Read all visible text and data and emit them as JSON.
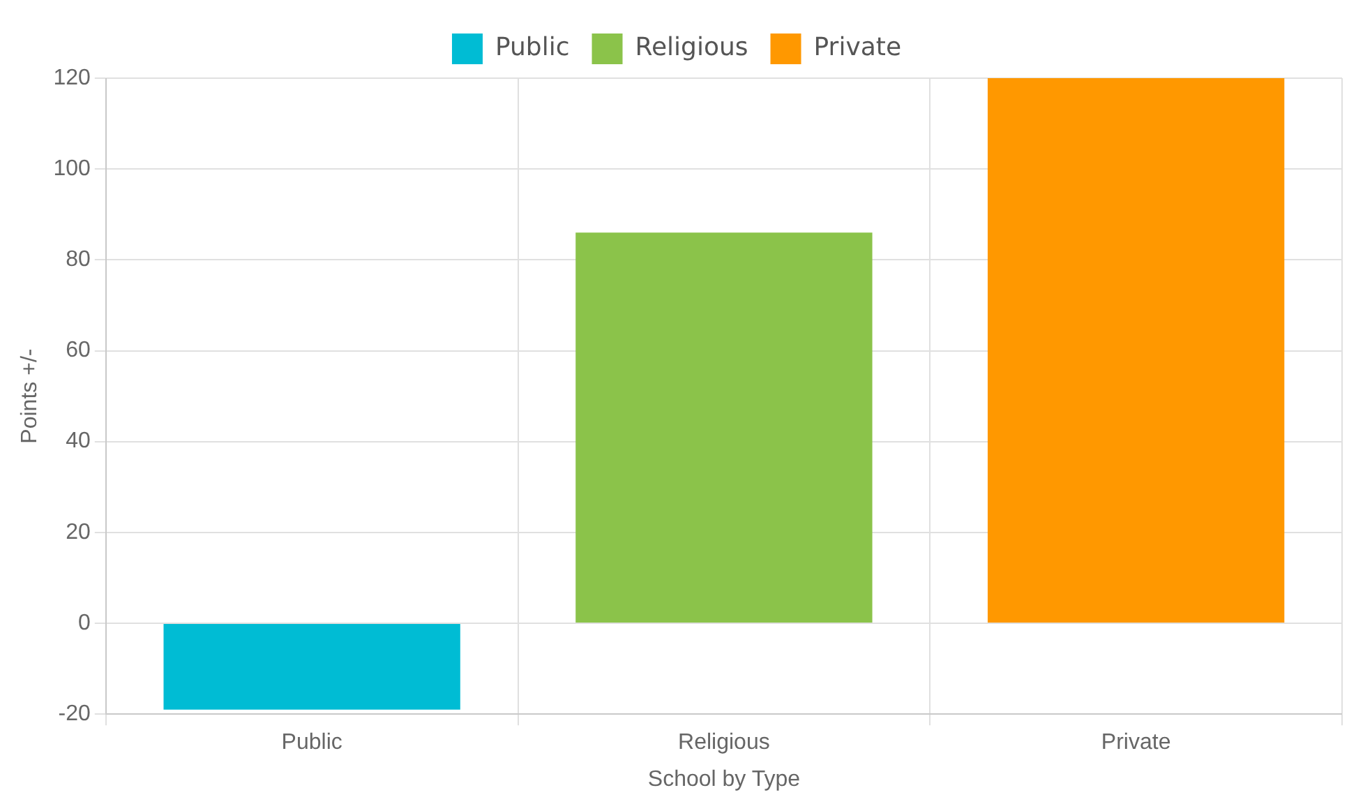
{
  "chart_data": {
    "type": "bar",
    "categories": [
      "Public",
      "Religious",
      "Private"
    ],
    "series": [
      {
        "name": "Public",
        "color": "#00bcd4",
        "values": [
          -19,
          null,
          null
        ]
      },
      {
        "name": "Religious",
        "color": "#8bc34a",
        "values": [
          null,
          86,
          null
        ]
      },
      {
        "name": "Private",
        "color": "#ff9800",
        "values": [
          null,
          null,
          120
        ]
      }
    ],
    "xlabel": "School by Type",
    "ylabel": "Points +/-",
    "ylim": [
      -20,
      120
    ],
    "yticks": [
      -20,
      0,
      20,
      40,
      60,
      80,
      100,
      120
    ],
    "grid": true,
    "legend": "top"
  }
}
